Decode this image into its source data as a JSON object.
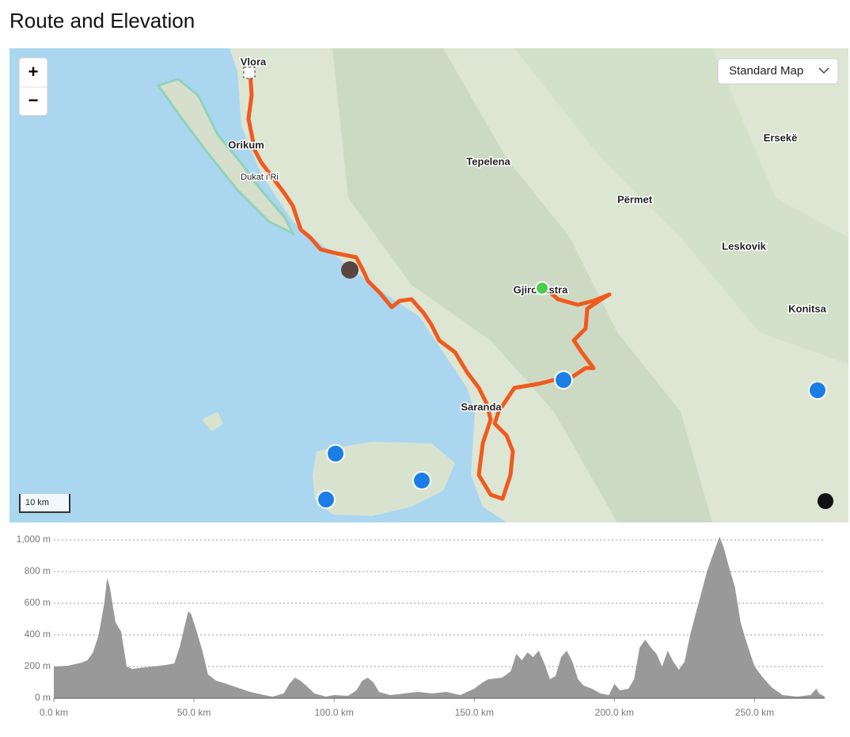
{
  "header": {
    "title": "Route and Elevation"
  },
  "map": {
    "zoom_in": "+",
    "zoom_out": "−",
    "map_type": "Standard Map",
    "scale": "10 km",
    "labels": [
      "Vlora",
      "Orikum",
      "Dukat i Ri",
      "Tepelena",
      "Përmet",
      "Ersekë",
      "Leskovik",
      "Gjirokastra",
      "Konitsa",
      "Saranda"
    ]
  },
  "chart_data": {
    "type": "area",
    "color": "#999999",
    "x": [
      0,
      5,
      10,
      12,
      14,
      16,
      18,
      19,
      20,
      22,
      24,
      26,
      28,
      30,
      35,
      40,
      43,
      45,
      47,
      48,
      49,
      51,
      53,
      55,
      58,
      60,
      65,
      70,
      75,
      78,
      82,
      84,
      86,
      88,
      90,
      93,
      97,
      100,
      105,
      108,
      110,
      112,
      114,
      116,
      120,
      125,
      130,
      135,
      140,
      145,
      150,
      153,
      155,
      160,
      163,
      165,
      167,
      169,
      171,
      173,
      175,
      177,
      179,
      181,
      183,
      185,
      187,
      189,
      192,
      195,
      198,
      200,
      202,
      205,
      207,
      209,
      211,
      213,
      215,
      217,
      219,
      221,
      223,
      225,
      227,
      230,
      233,
      236,
      237.5,
      239,
      241,
      243,
      245,
      247,
      250,
      253,
      256,
      260,
      265,
      270,
      272,
      273,
      275
    ],
    "values": [
      200,
      205,
      225,
      240,
      290,
      400,
      600,
      760,
      700,
      480,
      420,
      200,
      185,
      190,
      200,
      210,
      220,
      330,
      480,
      550,
      530,
      420,
      300,
      150,
      110,
      100,
      70,
      40,
      20,
      10,
      30,
      90,
      130,
      110,
      80,
      30,
      10,
      20,
      15,
      50,
      110,
      130,
      100,
      40,
      20,
      30,
      40,
      30,
      40,
      20,
      60,
      100,
      120,
      130,
      170,
      280,
      240,
      290,
      260,
      300,
      220,
      120,
      140,
      260,
      300,
      230,
      120,
      80,
      60,
      30,
      20,
      90,
      50,
      60,
      120,
      320,
      370,
      320,
      280,
      200,
      300,
      230,
      180,
      230,
      400,
      600,
      800,
      950,
      1020,
      950,
      820,
      700,
      480,
      360,
      200,
      130,
      70,
      20,
      10,
      20,
      60,
      30,
      10
    ],
    "xlim": [
      0,
      275
    ],
    "ylim": [
      0,
      1020
    ],
    "xticks": [
      {
        "value": 0,
        "label": "0.0 km"
      },
      {
        "value": 50,
        "label": "50.0 km"
      },
      {
        "value": 100,
        "label": "100.0 km"
      },
      {
        "value": 150,
        "label": "150.0 km"
      },
      {
        "value": 200,
        "label": "200.0 km"
      },
      {
        "value": 250,
        "label": "250.0 km"
      }
    ],
    "yticks": [
      {
        "value": 0,
        "label": "0 m"
      },
      {
        "value": 200,
        "label": "200 m"
      },
      {
        "value": 400,
        "label": "400 m"
      },
      {
        "value": 600,
        "label": "600 m"
      },
      {
        "value": 800,
        "label": "800 m"
      },
      {
        "value": 1000,
        "label": "1,000 m"
      }
    ],
    "grid": true
  }
}
